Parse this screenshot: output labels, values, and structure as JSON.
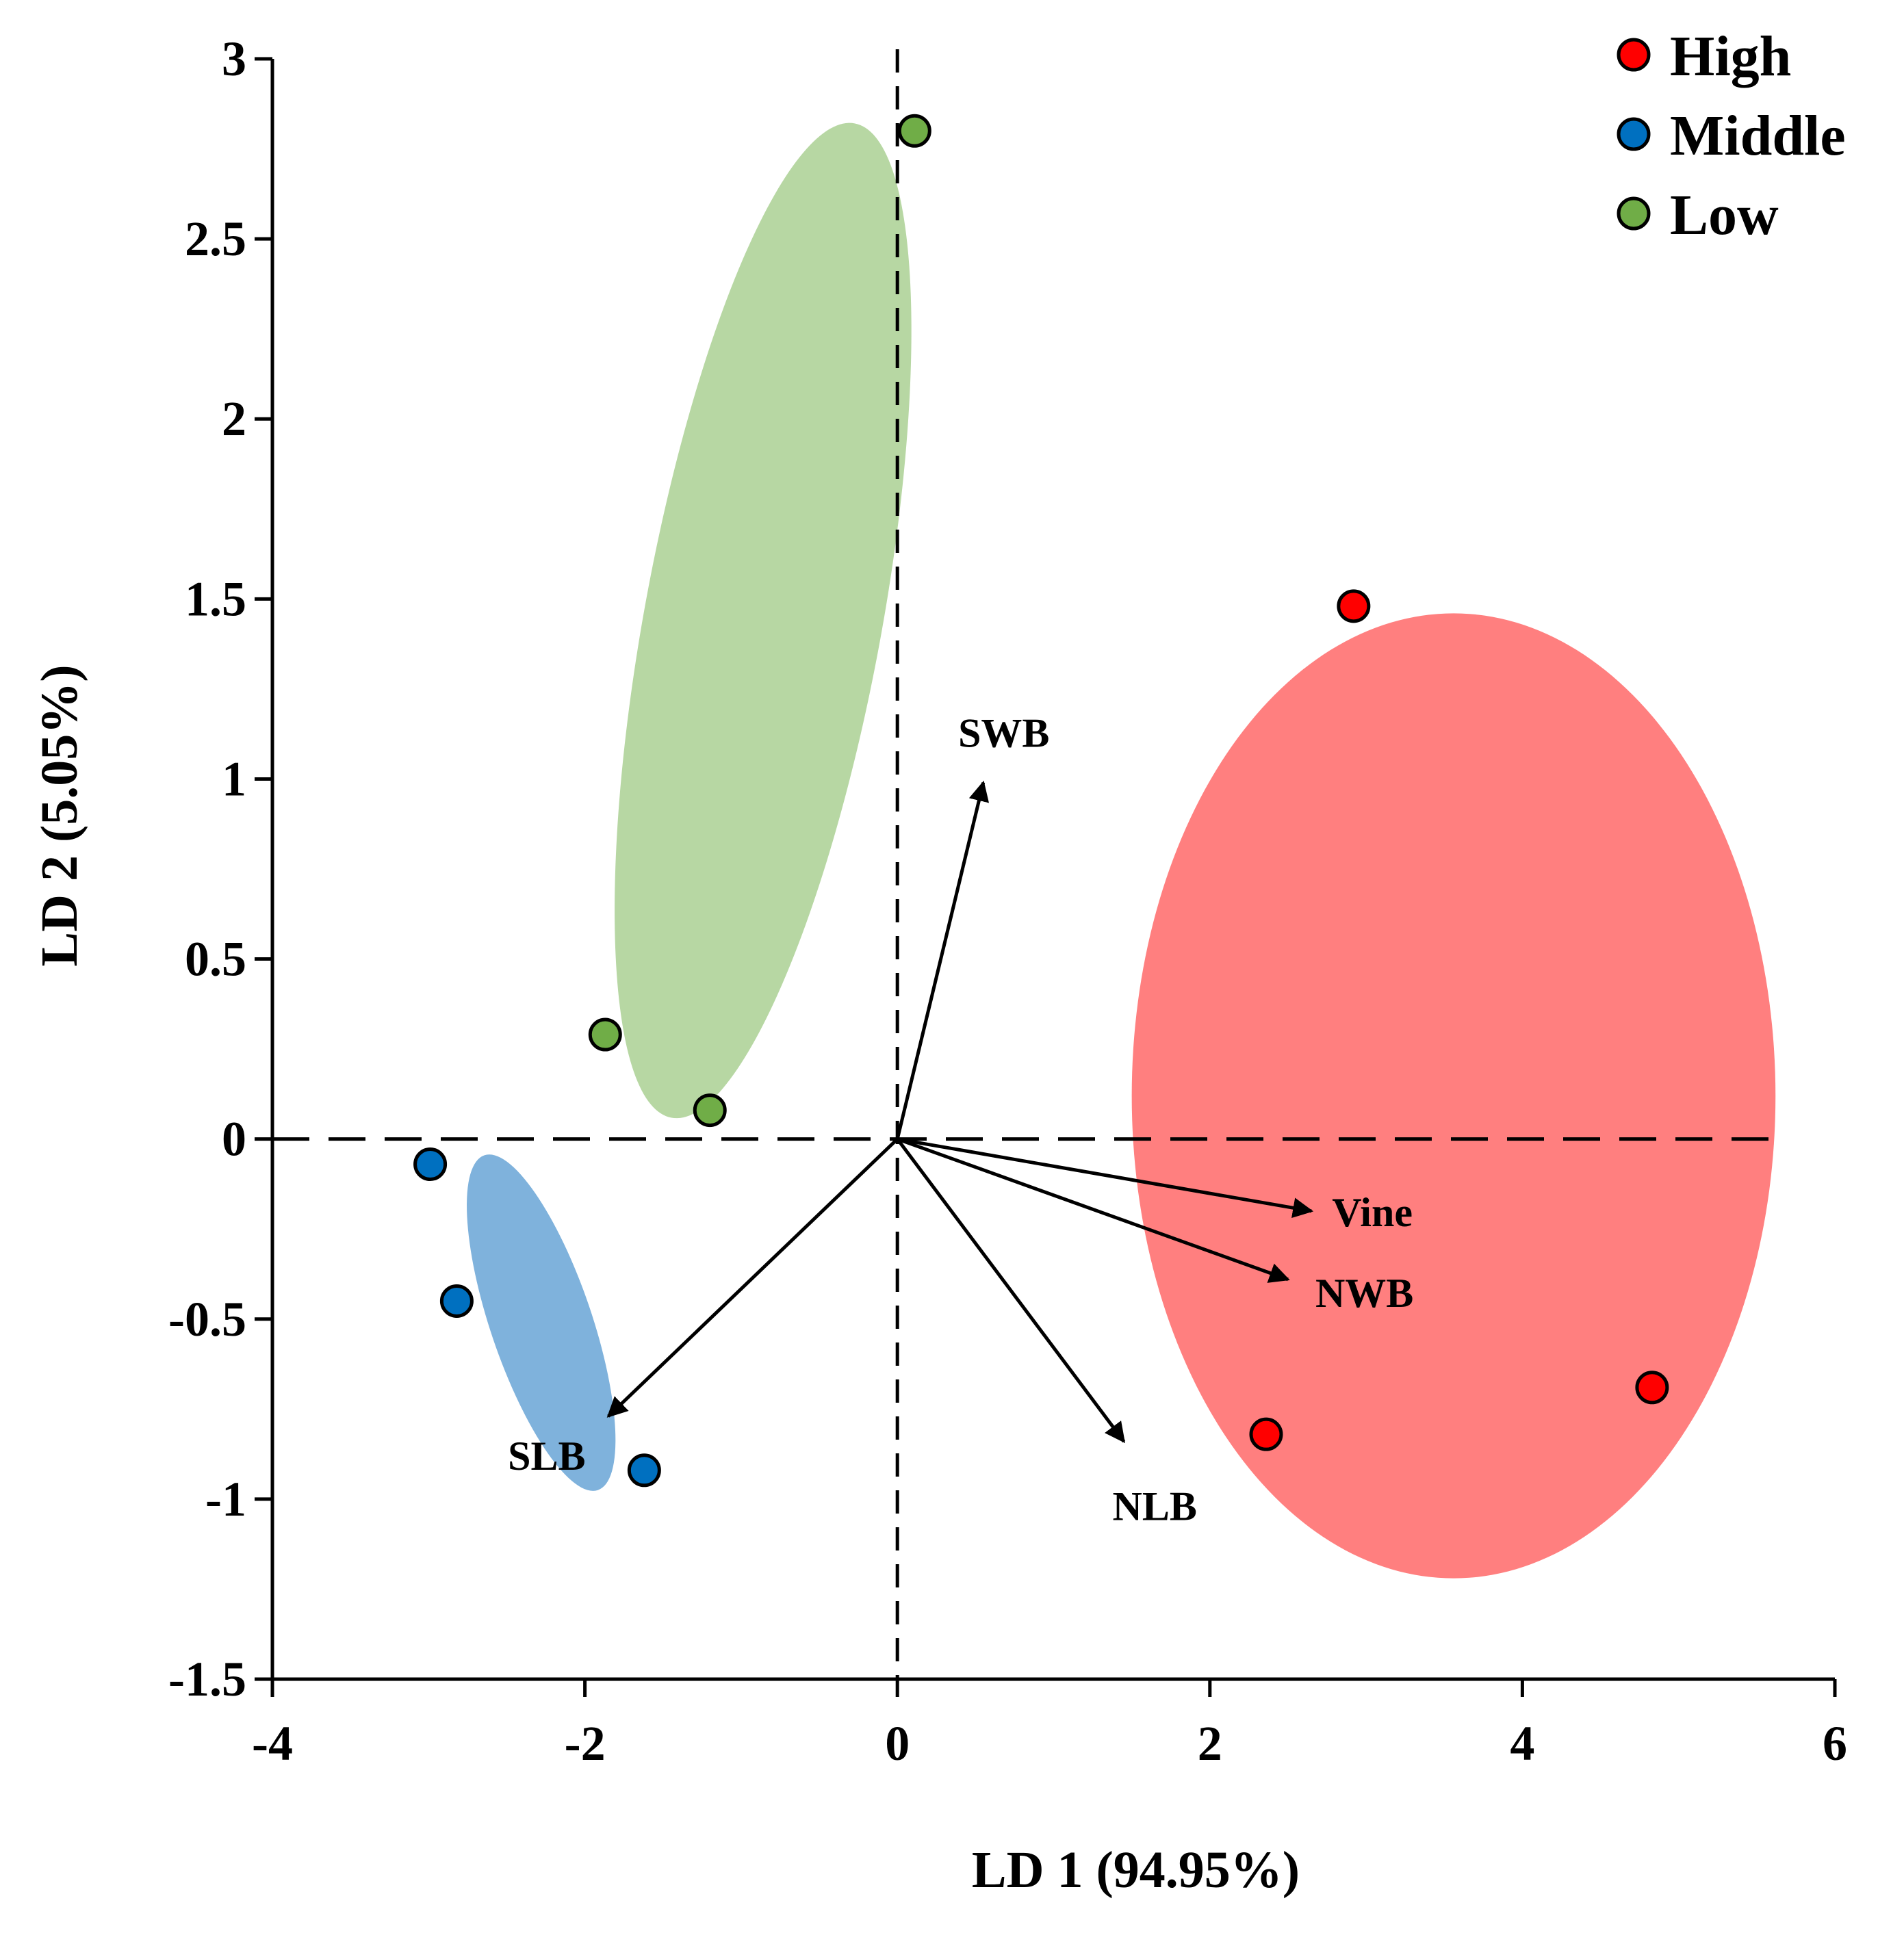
{
  "chart_data": {
    "type": "scatter",
    "title": "",
    "xlabel": "LD 1 (94.95%)",
    "ylabel": "LD 2 (5.05%)",
    "xlim": [
      -4,
      6
    ],
    "ylim": [
      -1.5,
      3
    ],
    "x_ticks": [
      "-4",
      "-2",
      "0",
      "2",
      "4",
      "6"
    ],
    "y_ticks": [
      "3",
      "2.5",
      "2",
      "1.5",
      "1",
      "0.5",
      "0",
      "-0.5",
      "-1",
      "-1.5"
    ],
    "x_tick_values": [
      -4,
      -2,
      0,
      2,
      4,
      6
    ],
    "y_tick_values": [
      3,
      2.5,
      2,
      1.5,
      1,
      0.5,
      0,
      -0.5,
      -1,
      -1.5
    ],
    "grid": false,
    "legend_position": "top-right",
    "series": [
      {
        "name": "High",
        "color": "#ff0000",
        "ellipse_color": "#ff7f7f",
        "points": [
          [
            2.92,
            1.48
          ],
          [
            2.36,
            -0.82
          ],
          [
            4.83,
            -0.69
          ]
        ],
        "ellipse": {
          "cx": 3.56,
          "cy": 0.12,
          "rx": 2.06,
          "ry": 1.34,
          "angle_deg": 0
        }
      },
      {
        "name": "Middle",
        "color": "#0070c0",
        "ellipse_color": "#7fb2dc",
        "points": [
          [
            -2.99,
            -0.07
          ],
          [
            -2.82,
            -0.45
          ],
          [
            -1.62,
            -0.92
          ]
        ],
        "ellipse": {
          "cx": -2.28,
          "cy": -0.51,
          "rx": 0.59,
          "ry": 0.2,
          "angle_deg": -52
        }
      },
      {
        "name": "Low",
        "color": "#70ad47",
        "ellipse_color": "#b7d7a3",
        "points": [
          [
            0.11,
            2.8
          ],
          [
            -1.87,
            0.29
          ],
          [
            -1.2,
            0.08
          ]
        ],
        "ellipse": {
          "cx": -0.86,
          "cy": 1.44,
          "rx": 1.5,
          "ry": 0.59,
          "angle_deg": 67
        }
      }
    ],
    "vectors": [
      {
        "name": "SWB",
        "x": 0.55,
        "y": 0.99
      },
      {
        "name": "Vine",
        "x": 2.65,
        "y": -0.2
      },
      {
        "name": "NWB",
        "x": 2.5,
        "y": -0.39
      },
      {
        "name": "NLB",
        "x": 1.45,
        "y": -0.84
      },
      {
        "name": "SLB",
        "x": -1.85,
        "y": -0.77
      }
    ]
  }
}
